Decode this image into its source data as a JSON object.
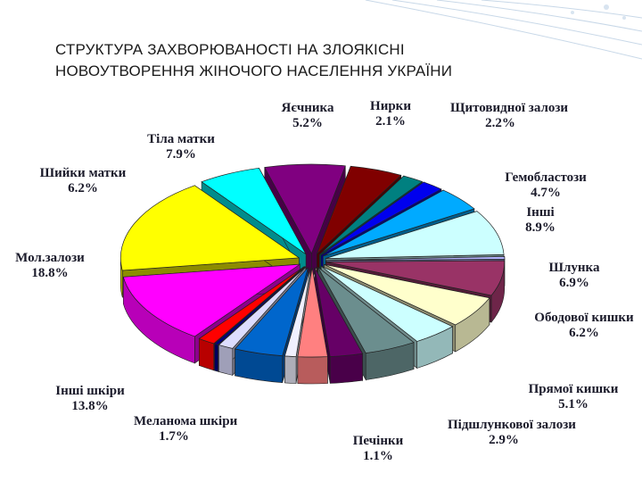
{
  "title": {
    "line1": "СТРУКТУРА ЗАХВОРЮВАНОСТІ НА ЗЛОЯКІСНІ",
    "line2": "НОВОУТВОРЕННЯ ЖІНОЧОГО НАСЕЛЕННЯ УКРАЇНИ"
  },
  "chart_data": {
    "type": "pie",
    "style": "3D exploded pie",
    "slices": [
      {
        "name": "Яєчника",
        "value_label": "5.2%",
        "value": 5.2,
        "color": "#800000"
      },
      {
        "name": "Нирки",
        "value_label": "2.1%",
        "value": 2.1,
        "color": "#008080"
      },
      {
        "name": "Щитовидної залози",
        "value_label": "2.2%",
        "value": 2.2,
        "color": "#0000ee"
      },
      {
        "name": "Гемобластози",
        "value_label": "4.7%",
        "value": 4.7,
        "color": "#00aaff"
      },
      {
        "name": "Інші",
        "value_label": "8.9%",
        "value": 8.9,
        "color": "#ccffff"
      },
      {
        "name": "",
        "value_label": "",
        "value": 0.5,
        "color": "#b3b3ff"
      },
      {
        "name": "Шлунка",
        "value_label": "6.9%",
        "value": 6.9,
        "color": "#993366"
      },
      {
        "name": "Ободової кишки",
        "value_label": "6.2%",
        "value": 6.2,
        "color": "#ffffcc"
      },
      {
        "name": "",
        "value_label": "",
        "value": 4.5,
        "color": "#ccffff"
      },
      {
        "name": "Прямої кишки",
        "value_label": "5.1%",
        "value": 5.1,
        "color": "#6b8e8e"
      },
      {
        "name": "",
        "value_label": "",
        "value": 3.2,
        "color": "#660066"
      },
      {
        "name": "Підшлункової залози",
        "value_label": "2.9%",
        "value": 2.9,
        "color": "#ff8080"
      },
      {
        "name": "Печінки",
        "value_label": "1.1%",
        "value": 1.1,
        "color": "#f0f0ff"
      },
      {
        "name": "",
        "value_label": "",
        "value": 4.8,
        "color": "#0066cc"
      },
      {
        "name": "",
        "value_label": "",
        "value": 1.5,
        "color": "#ddddff"
      },
      {
        "name": "",
        "value_label": "",
        "value": 0.4,
        "color": "#000080"
      },
      {
        "name": "Меланома шкіри",
        "value_label": "1.7%",
        "value": 1.7,
        "color": "#ff0000"
      },
      {
        "name": "Інші шкіри",
        "value_label": "13.8%",
        "value": 13.8,
        "color": "#ff00ff"
      },
      {
        "name": "Мол.залози",
        "value_label": "18.8%",
        "value": 18.8,
        "color": "#ffff00"
      },
      {
        "name": "Шийки матки",
        "value_label": "6.2%",
        "value": 6.2,
        "color": "#00ffff"
      },
      {
        "name": "Тіла матки",
        "value_label": "7.9%",
        "value": 7.9,
        "color": "#800080"
      }
    ]
  }
}
